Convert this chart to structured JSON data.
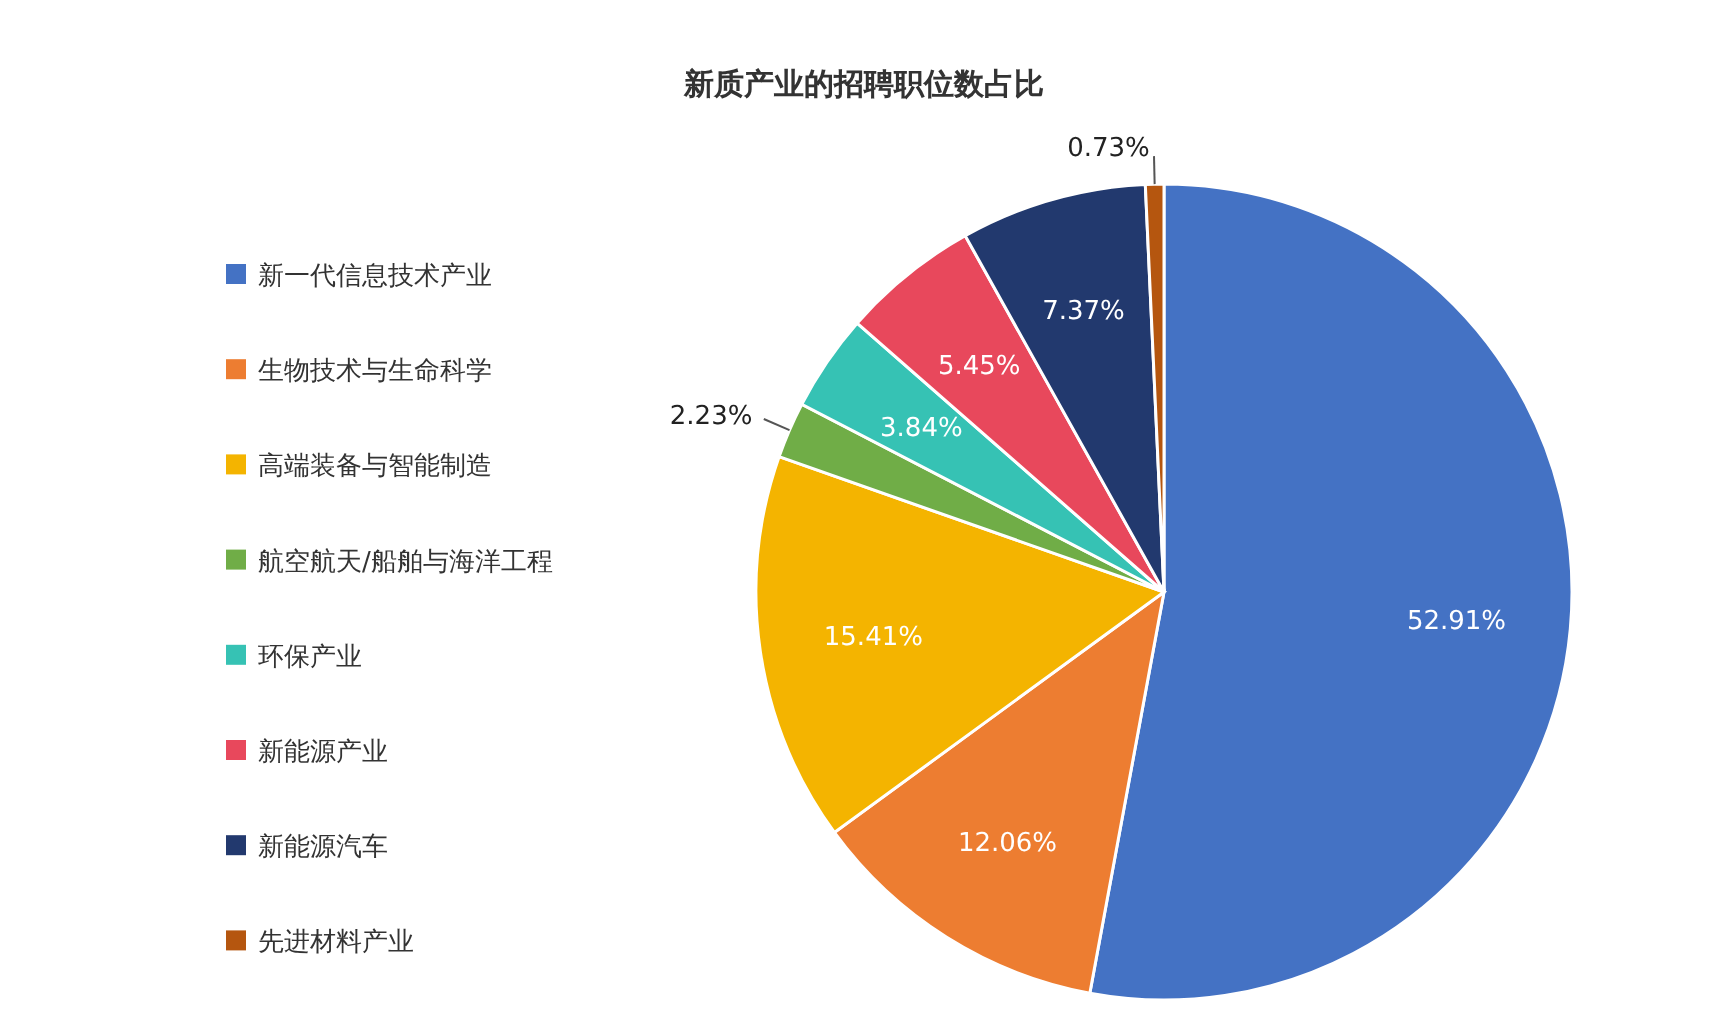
{
  "chart_data": {
    "type": "pie",
    "title": "新质产业的招聘职位数占比",
    "categories": [
      "新一代信息技术产业",
      "生物技术与生命科学",
      "高端装备与智能制造",
      "航空航天/船舶与海洋工程",
      "环保产业",
      "新能源产业",
      "新能源汽车",
      "先进材料产业"
    ],
    "values": [
      52.91,
      12.06,
      15.41,
      2.23,
      3.84,
      5.45,
      7.37,
      0.73
    ],
    "value_labels": [
      "52.91%",
      "12.06%",
      "15.41%",
      "2.23%",
      "3.84%",
      "5.45%",
      "7.37%",
      "0.73%"
    ],
    "colors": [
      "#4472c4",
      "#ed7d31",
      "#f4b400",
      "#70ad47",
      "#36c2b4",
      "#e8485c",
      "#22396e",
      "#b5560f"
    ],
    "legend": "left"
  }
}
